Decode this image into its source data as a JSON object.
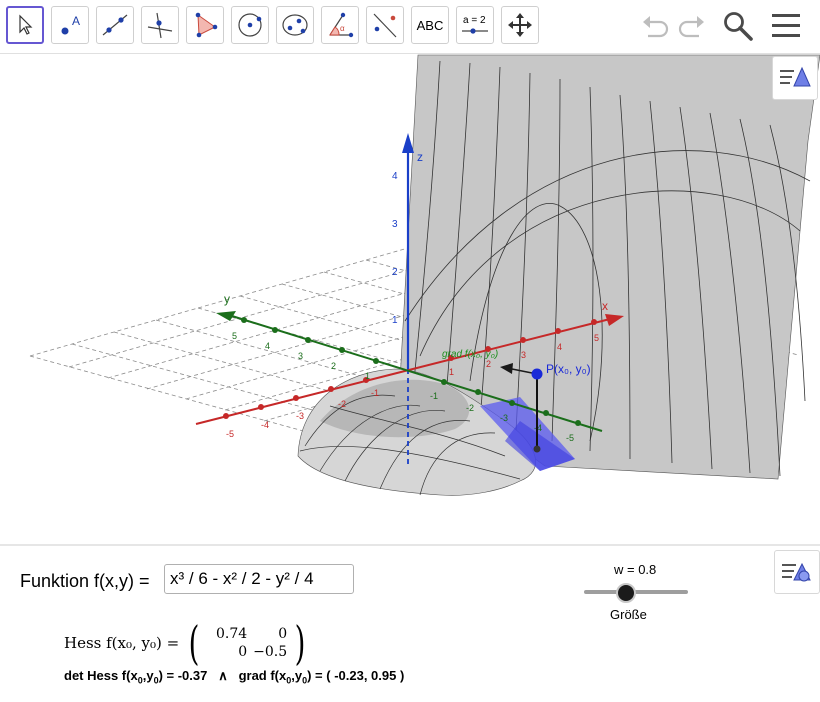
{
  "toolbar": {
    "tools": [
      "move-tool",
      "point-tool",
      "line-tool",
      "perpendicular-line-tool",
      "polygon-tool",
      "circle-tool",
      "ellipse-tool",
      "angle-tool",
      "reflect-tool",
      "text-tool",
      "slider-tool",
      "move-view-tool"
    ],
    "text_tool_label": "ABC",
    "slider_tool_label": "a = 2",
    "point_tool_label": "A"
  },
  "view3d": {
    "axis_labels": {
      "x": "x",
      "y": "y",
      "z": "z"
    },
    "z_ticks": [
      "1",
      "2",
      "3",
      "4"
    ],
    "x_ticks": [
      "-5",
      "-4",
      "-3",
      "-2",
      "-1",
      "1",
      "2",
      "3",
      "4",
      "5"
    ],
    "y_ticks": [
      "-5",
      "-4",
      "-3",
      "-2",
      "-1",
      "1",
      "2",
      "3",
      "4",
      "5"
    ],
    "point_label": "P(x₀, y₀)",
    "grad_label": "grad f(x₀, y₀)",
    "colors": {
      "x_axis": "#c62828",
      "y_axis": "#1b6e1b",
      "z_axis": "#1a3fc8",
      "surface": "#bdbdbd",
      "tangent_plane": "#5b5bf0"
    }
  },
  "function": {
    "label": "Funktion f(x,y) =",
    "value": "x³ / 6 - x² / 2 - y² / 4"
  },
  "slider": {
    "label": "w = 0.8",
    "caption": "Größe",
    "value": 0.8,
    "min": 0,
    "max": 2
  },
  "hess": {
    "label": "Hess f(x₀, y₀) =",
    "matrix": [
      "0.74",
      "0",
      "0",
      "−0.5"
    ]
  },
  "det": {
    "det_label": "det Hess f(x",
    "det_value": ") = -0.37",
    "and": "∧",
    "grad_label": "grad  f(x",
    "grad_value": ") = ( -0.23, 0.95 )",
    "sub0": "0"
  }
}
